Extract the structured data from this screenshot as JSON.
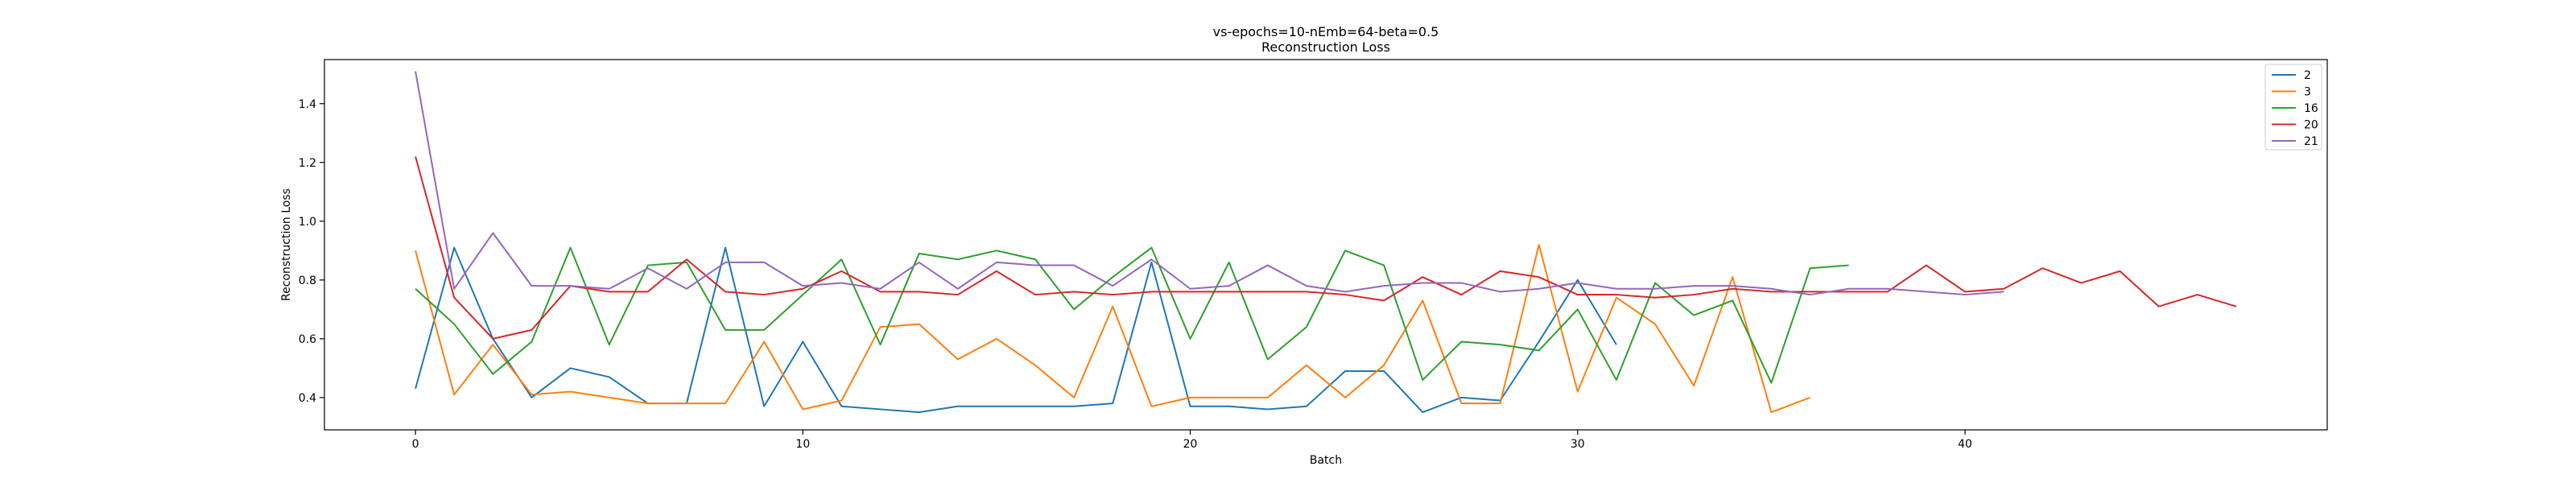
{
  "chart_data": {
    "type": "line",
    "title": "vs-epochs=10-nEmb=64-beta=0.5",
    "subtitle": "Reconstruction Loss",
    "xlabel": "Batch",
    "ylabel": "Reconstruction Loss",
    "xlim": [
      -2.35,
      49.35
    ],
    "ylim": [
      0.29,
      1.55
    ],
    "xticks": [
      0,
      10,
      20,
      30,
      40
    ],
    "yticks": [
      0.4,
      0.6,
      0.8,
      1.0,
      1.2,
      1.4
    ],
    "ytick_labels": [
      "0.4",
      "0.6",
      "0.8",
      "1.0",
      "1.2",
      "1.4"
    ],
    "grid": false,
    "legend_position": "top-right",
    "series": [
      {
        "name": "2",
        "color": "#1f77b4",
        "values": [
          0.43,
          0.91,
          0.6,
          0.4,
          0.5,
          0.47,
          0.38,
          0.38,
          0.91,
          0.37,
          0.59,
          0.37,
          0.36,
          0.35,
          0.37,
          0.37,
          0.37,
          0.37,
          0.38,
          0.86,
          0.37,
          0.37,
          0.36,
          0.37,
          0.49,
          0.49,
          0.35,
          0.4,
          0.39,
          0.59,
          0.8,
          0.58
        ]
      },
      {
        "name": "3",
        "color": "#ff7f0e",
        "values": [
          0.9,
          0.41,
          0.58,
          0.41,
          0.42,
          0.4,
          0.38,
          0.38,
          0.38,
          0.59,
          0.36,
          0.39,
          0.64,
          0.65,
          0.53,
          0.6,
          0.51,
          0.4,
          0.71,
          0.37,
          0.4,
          0.4,
          0.4,
          0.51,
          0.4,
          0.51,
          0.73,
          0.38,
          0.38,
          0.92,
          0.42,
          0.74,
          0.65,
          0.44,
          0.81,
          0.35,
          0.4
        ]
      },
      {
        "name": "16",
        "color": "#2ca02c",
        "values": [
          0.77,
          0.65,
          0.48,
          0.59,
          0.91,
          0.58,
          0.85,
          0.86,
          0.63,
          0.63,
          0.75,
          0.87,
          0.58,
          0.89,
          0.87,
          0.9,
          0.87,
          0.7,
          0.81,
          0.91,
          0.6,
          0.86,
          0.53,
          0.64,
          0.9,
          0.85,
          0.46,
          0.59,
          0.58,
          0.56,
          0.7,
          0.46,
          0.79,
          0.68,
          0.73,
          0.45,
          0.84,
          0.85
        ]
      },
      {
        "name": "20",
        "color": "#d62728",
        "values": [
          1.22,
          0.74,
          0.6,
          0.63,
          0.78,
          0.76,
          0.76,
          0.87,
          0.76,
          0.75,
          0.77,
          0.83,
          0.76,
          0.76,
          0.75,
          0.83,
          0.75,
          0.76,
          0.75,
          0.76,
          0.76,
          0.76,
          0.76,
          0.76,
          0.75,
          0.73,
          0.81,
          0.75,
          0.83,
          0.81,
          0.75,
          0.75,
          0.74,
          0.75,
          0.77,
          0.76,
          0.76,
          0.76,
          0.76,
          0.85,
          0.76,
          0.77,
          0.84,
          0.79,
          0.83,
          0.71,
          0.75,
          0.71
        ]
      },
      {
        "name": "21",
        "color": "#9467bd",
        "values": [
          1.51,
          0.77,
          0.96,
          0.78,
          0.78,
          0.77,
          0.84,
          0.77,
          0.86,
          0.86,
          0.78,
          0.79,
          0.77,
          0.86,
          0.77,
          0.86,
          0.85,
          0.85,
          0.78,
          0.87,
          0.77,
          0.78,
          0.85,
          0.78,
          0.76,
          0.78,
          0.79,
          0.79,
          0.76,
          0.77,
          0.79,
          0.77,
          0.77,
          0.78,
          0.78,
          0.77,
          0.75,
          0.77,
          0.77,
          0.76,
          0.75,
          0.76
        ]
      }
    ]
  }
}
